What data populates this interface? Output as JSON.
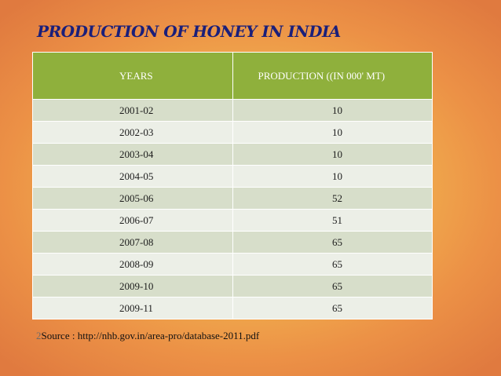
{
  "title": "PRODUCTION OF HONEY IN INDIA",
  "table": {
    "headers": [
      "YEARS",
      "PRODUCTION ((IN 000' MT)"
    ],
    "rows": [
      [
        "2001-02",
        "10"
      ],
      [
        "2002-03",
        "10"
      ],
      [
        "2003-04",
        "10"
      ],
      [
        "2004-05",
        "10"
      ],
      [
        "2005-06",
        "52"
      ],
      [
        "2006-07",
        "51"
      ],
      [
        "2007-08",
        "65"
      ],
      [
        "2008-09",
        "65"
      ],
      [
        "2009-10",
        "65"
      ],
      [
        "2009-11",
        "65"
      ]
    ]
  },
  "footer": {
    "page_number": "2",
    "source": "Source : http://nhb.gov.in/area-pro/database-2011.pdf"
  },
  "colors": {
    "title": "#1a1f7a",
    "header_bg": "#8fb03c",
    "row_odd": "#d7deca",
    "row_even": "#ecefe7"
  }
}
